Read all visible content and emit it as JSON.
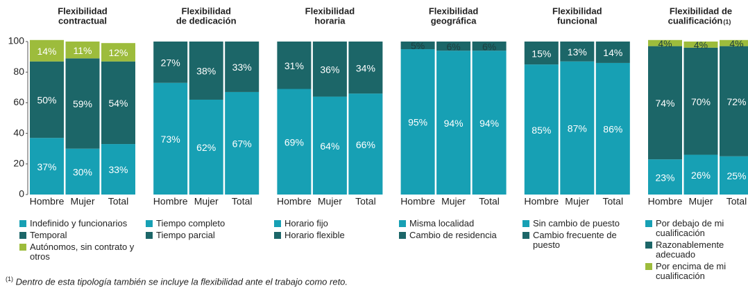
{
  "chart_data": [
    {
      "type": "bar",
      "stacked": true,
      "title": [
        "Flexibilidad",
        "contractual"
      ],
      "categories": [
        "Hombre",
        "Mujer",
        "Total"
      ],
      "ylim": [
        0,
        100
      ],
      "yticks": [
        0,
        20,
        40,
        60,
        80,
        100
      ],
      "series": [
        {
          "name": "Indefinido y funcionarios",
          "color": "#17a0b4",
          "values": [
            37,
            30,
            33
          ],
          "value_labels": [
            "37%",
            "30%",
            "33%"
          ]
        },
        {
          "name": "Temporal",
          "color": "#1c6668",
          "values": [
            50,
            59,
            54
          ],
          "value_labels": [
            "50%",
            "59%",
            "54%"
          ]
        },
        {
          "name": "Autónomos, sin contrato y otros",
          "color": "#9dbc3c",
          "values": [
            14,
            11,
            12
          ],
          "value_labels": [
            "14%",
            "11%",
            "12%"
          ]
        }
      ]
    },
    {
      "type": "bar",
      "stacked": true,
      "title": [
        "Flexibilidad",
        "de dedicación"
      ],
      "categories": [
        "Hombre",
        "Mujer",
        "Total"
      ],
      "ylim": [
        0,
        100
      ],
      "series": [
        {
          "name": "Tiempo completo",
          "color": "#17a0b4",
          "values": [
            73,
            62,
            67
          ],
          "value_labels": [
            "73%",
            "62%",
            "67%"
          ]
        },
        {
          "name": "Tiempo parcial",
          "color": "#1c6668",
          "values": [
            27,
            38,
            33
          ],
          "value_labels": [
            "27%",
            "38%",
            "33%"
          ]
        }
      ]
    },
    {
      "type": "bar",
      "stacked": true,
      "title": [
        "Flexibilidad",
        "horaria"
      ],
      "categories": [
        "Hombre",
        "Mujer",
        "Total"
      ],
      "ylim": [
        0,
        100
      ],
      "series": [
        {
          "name": "Horario fijo",
          "color": "#17a0b4",
          "values": [
            69,
            64,
            66
          ],
          "value_labels": [
            "69%",
            "64%",
            "66%"
          ]
        },
        {
          "name": "Horario flexible",
          "color": "#1c6668",
          "values": [
            31,
            36,
            34
          ],
          "value_labels": [
            "31%",
            "36%",
            "34%"
          ]
        }
      ]
    },
    {
      "type": "bar",
      "stacked": true,
      "title": [
        "Flexibilidad",
        "geográfica"
      ],
      "categories": [
        "Hombre",
        "Mujer",
        "Total"
      ],
      "ylim": [
        0,
        100
      ],
      "series": [
        {
          "name": "Misma localidad",
          "color": "#17a0b4",
          "values": [
            95,
            94,
            94
          ],
          "value_labels": [
            "95%",
            "94%",
            "94%"
          ]
        },
        {
          "name": "Cambio de residencia",
          "color": "#1c6668",
          "values": [
            5,
            6,
            6
          ],
          "value_labels": [
            "5%",
            "6%",
            "6%"
          ]
        }
      ]
    },
    {
      "type": "bar",
      "stacked": true,
      "title": [
        "Flexibilidad",
        "funcional"
      ],
      "categories": [
        "Hombre",
        "Mujer",
        "Total"
      ],
      "ylim": [
        0,
        100
      ],
      "series": [
        {
          "name": "Sin cambio de puesto",
          "color": "#17a0b4",
          "values": [
            85,
            87,
            86
          ],
          "value_labels": [
            "85%",
            "87%",
            "86%"
          ]
        },
        {
          "name": "Cambio frecuente de puesto",
          "color": "#1c6668",
          "values": [
            15,
            13,
            14
          ],
          "value_labels": [
            "15%",
            "13%",
            "14%"
          ]
        }
      ]
    },
    {
      "type": "bar",
      "stacked": true,
      "title": [
        "Flexibilidad de",
        "cualificación"
      ],
      "title_note": "(1)",
      "categories": [
        "Hombre",
        "Mujer",
        "Total"
      ],
      "ylim": [
        0,
        100
      ],
      "series": [
        {
          "name": "Por debajo de mi cualificación",
          "color": "#17a0b4",
          "values": [
            23,
            26,
            25
          ],
          "value_labels": [
            "23%",
            "26%",
            "25%"
          ]
        },
        {
          "name": "Razonablemente adecuado",
          "color": "#1c6668",
          "values": [
            74,
            70,
            72
          ],
          "value_labels": [
            "74%",
            "70%",
            "72%"
          ]
        },
        {
          "name": "Por encima de mi cualificación",
          "color": "#9dbc3c",
          "values": [
            4,
            4,
            4
          ],
          "value_labels": [
            "4%",
            "4%",
            "4%"
          ]
        }
      ]
    }
  ],
  "footnote": {
    "marker": "(1)",
    "text": "Dentro de esta tipología también se incluye la flexibilidad ante el trabajo como reto."
  }
}
